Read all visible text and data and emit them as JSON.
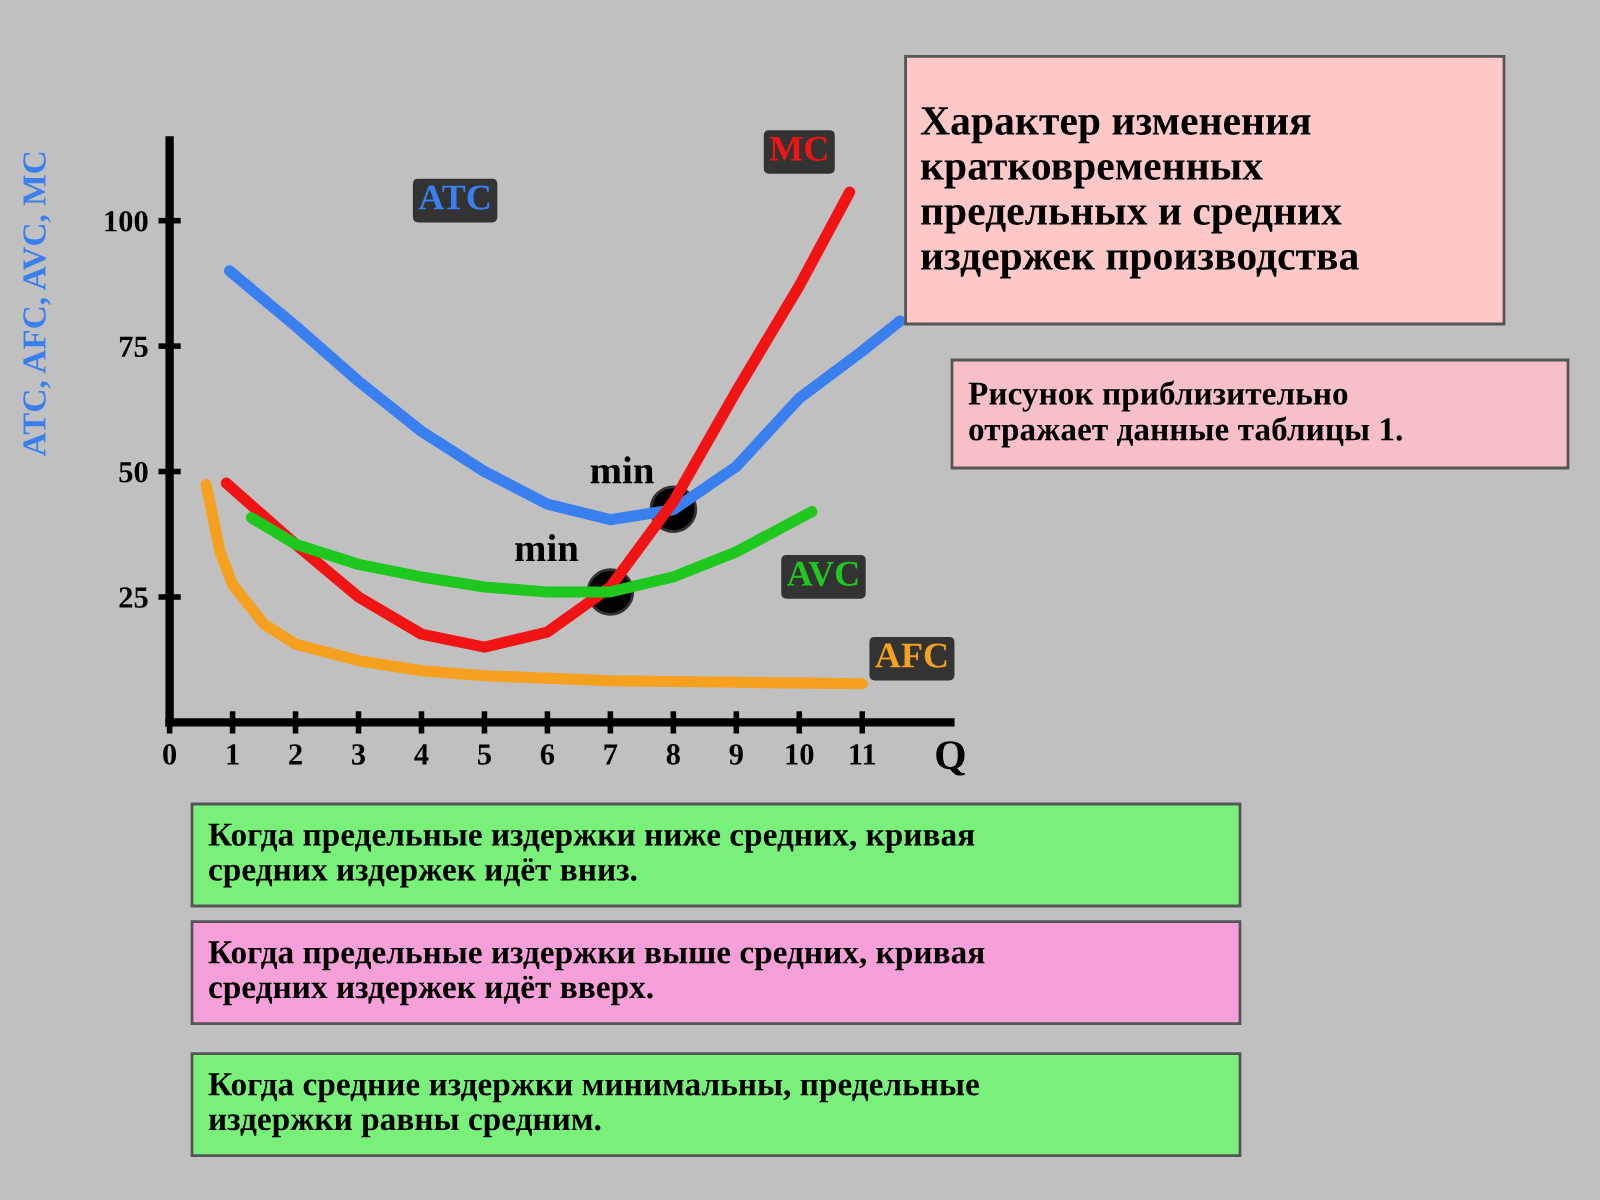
{
  "chart_data": {
    "type": "line",
    "title": "Характер изменения\nкратковременных\nпредельных и средних\nиздержек производства",
    "ylabel": "ATC, AFC, AVC, MC",
    "xlabel": "Q",
    "xlim": [
      0,
      12.4
    ],
    "ylim": [
      0,
      116
    ],
    "xticks": [
      0,
      1,
      2,
      3,
      4,
      5,
      6,
      7,
      8,
      9,
      10,
      11
    ],
    "yticks": [
      25,
      50,
      75,
      100
    ],
    "grid": false,
    "legend": false,
    "marker": "none",
    "line_style": "solid",
    "series": [
      {
        "name": "ATC",
        "color": "#3a7ff0",
        "x": [
          0.95,
          2,
          3,
          4,
          5,
          6,
          7,
          8,
          9,
          10,
          11,
          11.6
        ],
        "values": [
          90,
          79,
          68,
          58,
          50,
          43.5,
          40.4,
          42.4,
          51,
          64.6,
          74,
          80
        ]
      },
      {
        "name": "MC",
        "color": "#f01414",
        "x": [
          0.9,
          2,
          3,
          4,
          5,
          6,
          7,
          8,
          9,
          10,
          10.8
        ],
        "values": [
          47.7,
          35.5,
          25,
          17.6,
          15,
          18,
          27,
          44,
          66,
          87,
          105.7
        ]
      },
      {
        "name": "AVC",
        "color": "#1ec81e",
        "x": [
          1.3,
          2,
          3,
          4,
          5,
          6,
          7,
          8,
          9,
          10.2
        ],
        "values": [
          40.8,
          35.5,
          31.5,
          29,
          27,
          26,
          26,
          29,
          34,
          42
        ]
      },
      {
        "name": "AFC",
        "color": "#f5a01e",
        "x": [
          0.58,
          0.8,
          1,
          1.5,
          2,
          3,
          4,
          5,
          7,
          9,
          11
        ],
        "values": [
          47.4,
          34,
          27.5,
          19.6,
          15.6,
          12.3,
          10.3,
          9.3,
          8.3,
          8,
          7.7
        ]
      },
      {
        "type": "scatter",
        "color": "#000000",
        "marker": "circle",
        "x": [
          7,
          8
        ],
        "values": [
          26,
          42.5
        ]
      }
    ],
    "annotations": [
      {
        "text": "min",
        "x": 8,
        "y": 42.5
      },
      {
        "text": "min",
        "x": 7,
        "y": 26
      },
      "Рисунок приблизительно\nотражает данные таблицы 1.",
      "Когда предельные издержки ниже средних, кривая\nсредних издержек идёт вниз.",
      "Когда предельные издержки выше средних, кривая\nсредних издержек идёт вверх.",
      "Когда средние издержки минимальны, предельные\nиздержки равны средним."
    ]
  }
}
